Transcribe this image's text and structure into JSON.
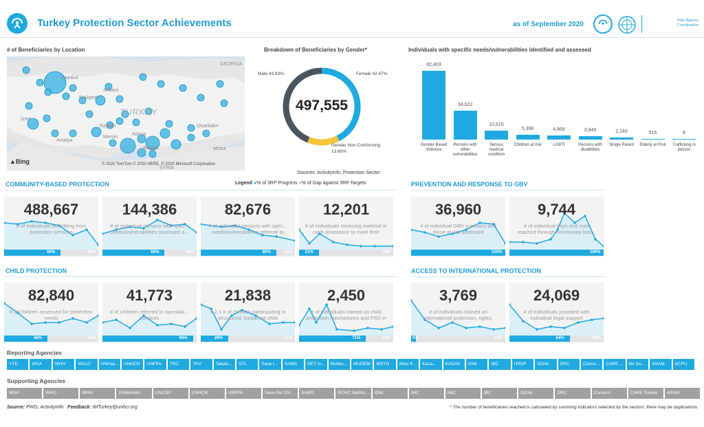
{
  "header": {
    "title": "Turkey Protection Sector Achievements",
    "date": "as of September 2020",
    "partner_logo_text": "Inter-Agency Coordination"
  },
  "map": {
    "title": "# of Beneficiaries by Location",
    "country_label": "TURKEY",
    "places": [
      "Istanbul",
      "Eskişehir",
      "Ankara",
      "İzmir",
      "Kayseri",
      "Antalya",
      "Mersin",
      "Adana",
      "Diyarbakır",
      "Mosul",
      "GEORGIA",
      "Aleppo",
      "SYRIA"
    ],
    "bing_label": "Bing",
    "copyright": "© 2020 TomTom © 2020 HERE, © 2020 Microsoft Corporation"
  },
  "gender": {
    "title": "Breakdown of Beneficiaries by Gender*",
    "total": "497,555",
    "male_label": "Male 43.93%",
    "female_label": "Female 42.47%",
    "nc_label_1": "Gender Non-Conforming",
    "nc_label_2": "13.60%",
    "sources": "Sources: ActivityInfo, Protection Sector",
    "segments": [
      {
        "name": "Male",
        "value": 43.93,
        "color": "#4a5560"
      },
      {
        "name": "Female",
        "value": 42.47,
        "color": "#1fa9e0"
      },
      {
        "name": "Gender Non-Conforming",
        "value": 13.6,
        "color": "#f2c53d"
      }
    ]
  },
  "chart_data": {
    "type": "bar",
    "title": "Individuals with specific needs/vulnerabilities identified and assessed",
    "categories": [
      "Gender Based Violence",
      "Persons with other vulnerabilities",
      "Serious medical condition",
      "Children at risk",
      "LGBTI",
      "Persons with disabilities",
      "Single Parent",
      "Elderly at Risk",
      "Trafficking in person"
    ],
    "value_labels": [
      "82,403",
      "34,622",
      "10,515",
      "5,368",
      "4,868",
      "3,943",
      "2,140",
      "516",
      "9"
    ],
    "values": [
      82403,
      34622,
      10515,
      5368,
      4868,
      3943,
      2140,
      516,
      9
    ],
    "color": "#1fa9e0"
  },
  "legend": {
    "label": "Legend",
    "progress": "% of 3RP Progress",
    "gap": "% of Gap against 3RP Targets"
  },
  "sections": {
    "community": "COMMUNITY-BASED PROTECTION",
    "gbv": "PREVENTION AND RESPONSE TO GBV",
    "child": "CHILD PROTECTION",
    "intl": "ACCESS TO INTERNATIONAL PROTECTION"
  },
  "cards": [
    {
      "num": "488,667",
      "desc": "# of individuals benefiting from protection services",
      "progress": "60%",
      "gap": "40%",
      "pv": 60
    },
    {
      "num": "144,386",
      "desc": "# of individual persons with spec... needs/vulnerabilities assessed a... referred",
      "progress": "66%",
      "gap": "34%",
      "pv": 66
    },
    {
      "num": "82,676",
      "desc": "# of individual persons with spec... needs/vulnerabilities referred to specialized services",
      "progress": "80%",
      "gap": "20%",
      "pv": 80
    },
    {
      "num": "12,201",
      "desc": "# of individuals receiving material or cash assistance to meet their protection needs",
      "progress": "21%",
      "gap": "79%",
      "pv": 21
    },
    {
      "num": "36,960",
      "desc": "# of individual GBV survivors and those at risk assessed",
      "progress": "100%",
      "gap": "",
      "pv": 100
    },
    {
      "num": "9,744",
      "desc": "# of individual boys and men reached through community-bas... initiatives for mitigation and pr",
      "progress": "100%",
      "gap": "",
      "pv": 100
    },
    {
      "num": "82,840",
      "desc": "# of children assessed for protection needs",
      "progress": "46%",
      "gap": "54%",
      "pv": 46
    },
    {
      "num": "41,773",
      "desc": "# of children referred to specializ... services",
      "progress": "96%",
      "gap": "",
      "pv": 96
    },
    {
      "num": "21,838",
      "desc": "4.2.1 # of children participating in structured, sustained child protection or psycho-social supp... programmes",
      "progress": "29%",
      "gap": "71%",
      "pv": 29
    },
    {
      "num": "2,450",
      "desc": "# of individuals trained on child protection mechanisms and PSS in emergencies",
      "progress": "71%",
      "gap": "29%",
      "pv": 71
    },
    {
      "num": "3,769",
      "desc": "# of individuals trained on international protection, rights, services and available assistance",
      "progress": "5%",
      "gap": "95%",
      "pv": 5
    },
    {
      "num": "24,069",
      "desc": "# of individuals provided with individual legal support",
      "progress": "64%",
      "gap": "36%",
      "pv": 64
    }
  ],
  "reporting": {
    "title": "Reporting Agencies",
    "items": [
      "YYD",
      "WSA",
      "WHH",
      "WALD",
      "UNHas...",
      "UNHCR",
      "UNFPA",
      "TRC",
      "TKV",
      "Takalu...",
      "STL",
      "Save t...",
      "SAMS",
      "RET In...",
      "Multec...",
      "MUDEM",
      "MSYD",
      "Mavi K...",
      "Kaza...",
      "KADAV",
      "IOM",
      "IBC",
      "HRDF",
      "GOAL",
      "DRC",
      "Conce...",
      "CARE ...",
      "Bir Du...",
      "ASAM",
      "ACPU"
    ]
  },
  "supporting": {
    "title": "Supporting Agencies",
    "items": [
      "WSA",
      "WHO",
      "WHH",
      "UNWomen",
      "UNICEF",
      "UNHCR",
      "UNFPA",
      "Save the Chi...",
      "SAMS",
      "RCHC Nation...",
      "IOM",
      "IMC",
      "IMC",
      "IBC",
      "GOAL",
      "DRC",
      "Concern",
      "CARE Turkey",
      "ASAM"
    ]
  },
  "footer": {
    "source_label": "Source:",
    "source_value": "PWG, ActivityInfo",
    "feedback_label": "Feedback:",
    "feedback_value": "IMTurkey@unhcr.org",
    "note": "* The number of beneficiaries reached is calculated by summing indicators selected by the sectors; there may be duplications."
  }
}
